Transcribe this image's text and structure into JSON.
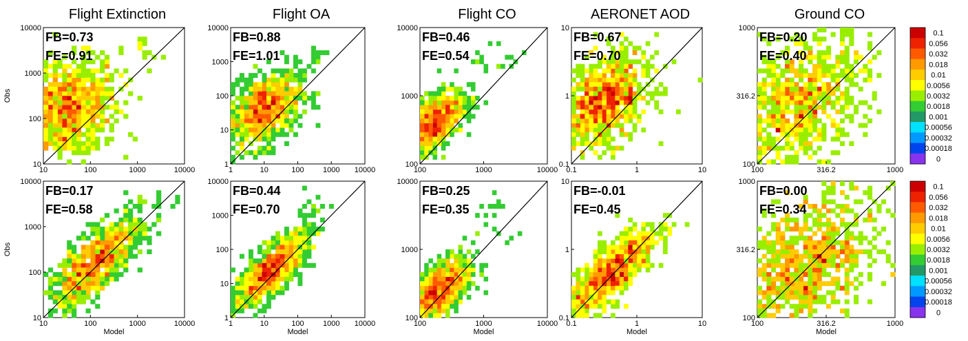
{
  "chart_data": {
    "type": "heatmap",
    "x_label": "Model",
    "y_label": "Obs",
    "titles": [
      "Flight Extinction",
      "Flight OA",
      "Flight CO",
      "AERONET AOD",
      "Ground  CO"
    ],
    "rows": 2,
    "cols": 5,
    "scale": "log",
    "panels": [
      {
        "id": "r1c1",
        "title": "Flight Extinction",
        "row": 1,
        "xlim": [
          10,
          10000
        ],
        "ylim": [
          10,
          10000
        ],
        "xticks": [
          "10",
          "100",
          "1000",
          "10000"
        ],
        "yticks": [
          "10",
          "100",
          "1000",
          "10000"
        ],
        "stats": {
          "fb": "FB=0.73",
          "fe": "FE=0.91"
        },
        "center": [
          1.5,
          2.2
        ],
        "spread": 0.55,
        "corr": 0.25,
        "outliers": [
          [
            3.1,
            3.6
          ],
          [
            3.3,
            3.5
          ]
        ]
      },
      {
        "id": "r1c2",
        "title": "Flight OA",
        "row": 1,
        "xlim": [
          1,
          10000
        ],
        "ylim": [
          1,
          10000
        ],
        "xticks": [
          "1",
          "10",
          "100",
          "1000",
          "10000"
        ],
        "yticks": [
          "1",
          "10",
          "100",
          "1000",
          "10000"
        ],
        "stats": {
          "fb": "FB=0.88",
          "fe": "FE=1.01"
        },
        "center": [
          1.0,
          1.6
        ],
        "spread": 0.55,
        "corr": 0.4,
        "outliers": [
          [
            2.6,
            3.3
          ],
          [
            2.5,
            3.0
          ]
        ]
      },
      {
        "id": "r1c3",
        "title": "Flight CO",
        "row": 1,
        "xlim": [
          100,
          10000
        ],
        "ylim": [
          100,
          10000
        ],
        "xticks": [
          "100",
          "1000",
          "10000"
        ],
        "yticks": [
          "100",
          "1000",
          "10000"
        ],
        "stats": {
          "fb": "FB=0.46",
          "fe": "FE=0.54"
        },
        "center": [
          2.2,
          2.6
        ],
        "spread": 0.25,
        "corr": 0.6,
        "outliers": [
          [
            3.0,
            3.5
          ],
          [
            3.2,
            3.4
          ],
          [
            3.3,
            3.6
          ]
        ]
      },
      {
        "id": "r1c4",
        "title": "AERONET AOD",
        "row": 1,
        "xlim": [
          0.1,
          10
        ],
        "ylim": [
          0.1,
          10
        ],
        "xticks": [
          "0.1",
          "1",
          "10"
        ],
        "yticks": [
          "0.1",
          "1",
          "10"
        ],
        "stats": {
          "fb": "FB=0.67",
          "fe": "FE=0.70"
        },
        "center": [
          -0.5,
          -0.1
        ],
        "spread": 0.35,
        "corr": 0.4,
        "outliers": []
      },
      {
        "id": "r1c5",
        "title": "Ground  CO",
        "row": 1,
        "xlim": [
          100,
          1000
        ],
        "ylim": [
          100,
          1000
        ],
        "xticks": [
          "100",
          "316.2",
          "1000"
        ],
        "yticks": [
          "100",
          "316.2",
          "1000"
        ],
        "stats": {
          "fb": "FB=0.20",
          "fe": "FE=0.40"
        },
        "center": [
          2.3,
          2.45
        ],
        "spread": 0.25,
        "corr": 0.45,
        "outliers": []
      },
      {
        "id": "r2c1",
        "title": "Flight Extinction",
        "row": 2,
        "xlim": [
          10,
          10000
        ],
        "ylim": [
          10,
          10000
        ],
        "xticks": [
          "10",
          "100",
          "1000",
          "10000"
        ],
        "yticks": [
          "10",
          "100",
          "1000",
          "10000"
        ],
        "stats": {
          "fb": "FB=0.17",
          "fe": "FE=0.58"
        },
        "center": [
          2.1,
          2.2
        ],
        "spread": 0.5,
        "corr": 0.75,
        "outliers": [
          [
            3.2,
            3.6
          ],
          [
            3.4,
            3.5
          ]
        ]
      },
      {
        "id": "r2c2",
        "title": "Flight OA",
        "row": 2,
        "xlim": [
          1,
          10000
        ],
        "ylim": [
          1,
          10000
        ],
        "xticks": [
          "1",
          "10",
          "100",
          "1000",
          "10000"
        ],
        "yticks": [
          "1",
          "10",
          "100",
          "1000",
          "10000"
        ],
        "stats": {
          "fb": "FB=0.44",
          "fe": "FE=0.70"
        },
        "center": [
          1.2,
          1.4
        ],
        "spread": 0.55,
        "corr": 0.75,
        "outliers": [
          [
            2.4,
            3.1
          ],
          [
            2.5,
            3.3
          ]
        ]
      },
      {
        "id": "r2c3",
        "title": "Flight CO",
        "row": 2,
        "xlim": [
          100,
          10000
        ],
        "ylim": [
          100,
          10000
        ],
        "xticks": [
          "100",
          "1000",
          "10000"
        ],
        "yticks": [
          "100",
          "1000",
          "10000"
        ],
        "stats": {
          "fb": "FB=0.25",
          "fe": "FE=0.35"
        },
        "center": [
          2.3,
          2.4
        ],
        "spread": 0.25,
        "corr": 0.6,
        "outliers": [
          [
            3.1,
            3.6
          ],
          [
            3.2,
            3.5
          ],
          [
            3.3,
            3.2
          ]
        ]
      },
      {
        "id": "r2c4",
        "title": "AERONET AOD",
        "row": 2,
        "xlim": [
          0.1,
          10
        ],
        "ylim": [
          0.1,
          10
        ],
        "xticks": [
          "0.1",
          "1",
          "10"
        ],
        "yticks": [
          "0.1",
          "1",
          "10"
        ],
        "stats": {
          "fb": "FB=-0.01",
          "fe": "FE=0.45"
        },
        "center": [
          -0.4,
          -0.35
        ],
        "spread": 0.35,
        "corr": 0.8,
        "outliers": []
      },
      {
        "id": "r2c5",
        "title": "Ground  CO",
        "row": 2,
        "xlim": [
          100,
          1000
        ],
        "ylim": [
          100,
          1000
        ],
        "xticks": [
          "100",
          "316.2",
          "1000"
        ],
        "yticks": [
          "100",
          "316.2",
          "1000"
        ],
        "stats": {
          "fb": "FB=0.00",
          "fe": "FE=0.34"
        },
        "center": [
          2.35,
          2.38
        ],
        "spread": 0.27,
        "corr": 0.45,
        "outliers": []
      }
    ],
    "colorbar": {
      "labels": [
        "0.1",
        "0.056",
        "0.032",
        "0.018",
        "0.01",
        "0.0056",
        "0.0032",
        "0.0018",
        "0.001",
        "0.00056",
        "0.00032",
        "0.00018",
        "0"
      ],
      "colors": [
        "#cc0000",
        "#ee2200",
        "#ff5a00",
        "#ff9a00",
        "#ffcc00",
        "#ffff00",
        "#99ee00",
        "#33cc33",
        "#229966",
        "#00e0ff",
        "#0099ff",
        "#0044ee",
        "#8833ee"
      ]
    }
  }
}
